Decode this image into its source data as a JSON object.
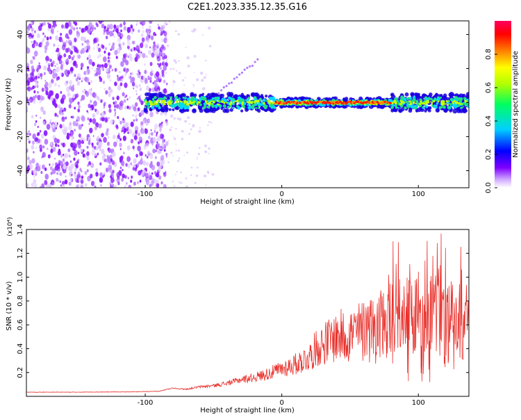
{
  "title": "C2E1.2023.335.12.35.G16",
  "chart_data": [
    {
      "type": "heatmap",
      "xlabel": "Height of straight line (km)",
      "ylabel": "Frequency (Hz)",
      "xlim": [
        -187,
        137
      ],
      "ylim": [
        -50,
        48
      ],
      "xticks": [
        -100,
        0,
        100
      ],
      "yticks": [
        -40,
        -20,
        0,
        20,
        40
      ],
      "colorbar": {
        "label": "Normalized spectral amplitude",
        "range": [
          0,
          1
        ],
        "ticks": [
          "0.0",
          "0.2",
          "0.4",
          "0.6",
          "0.8"
        ],
        "colors": [
          "#ffffff",
          "#cfa8ff",
          "#7f00ff",
          "#0000ff",
          "#00d0ff",
          "#00ff60",
          "#b0ff00",
          "#ffff00",
          "#ff8000",
          "#ff0000",
          "#ff0060"
        ]
      },
      "features": {
        "noise_region_x": [
          -187,
          -90
        ],
        "signal_band_x": [
          -100,
          137
        ],
        "signal_center_freq": 0,
        "signal_peak_x": [
          -5,
          80
        ]
      }
    },
    {
      "type": "line",
      "xlabel": "Height of straight line (km)",
      "ylabel": "SNR (10 * v/v)",
      "multiplier": "(x10⁴)",
      "xlim": [
        -187,
        137
      ],
      "ylim": [
        0,
        14000
      ],
      "xticks": [
        -100,
        0,
        100
      ],
      "yticks": [
        2000,
        4000,
        6000,
        8000,
        10000,
        12000,
        14000
      ],
      "yticklabels": [
        "0.2",
        "0.4",
        "0.6",
        "0.8",
        "1.0",
        "1.2",
        "1.4"
      ],
      "color": "#e8302b",
      "x": [
        -187,
        -150,
        -110,
        -90,
        -80,
        -70,
        -60,
        -50,
        -40,
        -30,
        -20,
        -10,
        0,
        10,
        20,
        25,
        30,
        40,
        50,
        60,
        70,
        80,
        90,
        100,
        110,
        120,
        130,
        137
      ],
      "y": [
        350,
        350,
        380,
        420,
        700,
        600,
        800,
        900,
        1100,
        1400,
        1600,
        1900,
        2300,
        2700,
        3300,
        4000,
        4400,
        5000,
        5200,
        5500,
        5800,
        6200,
        6500,
        6800,
        6600,
        6400,
        6200,
        6000
      ]
    }
  ]
}
